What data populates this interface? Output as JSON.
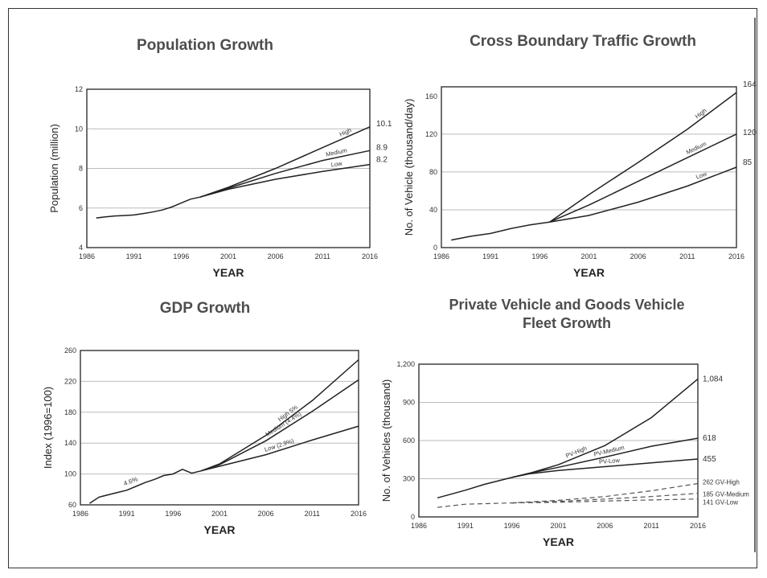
{
  "chart_data": [
    {
      "id": "population",
      "type": "line",
      "title": "Population Growth",
      "xlabel": "YEAR",
      "ylabel": "Population (million)",
      "xlim": [
        1986,
        2016
      ],
      "ylim": [
        4,
        12
      ],
      "xticks": [
        1986,
        1991,
        1996,
        2001,
        2006,
        2011,
        2016
      ],
      "yticks": [
        4,
        6,
        8,
        10,
        12
      ],
      "grid": true,
      "historical": [
        [
          1987,
          5.5
        ],
        [
          1988,
          5.55
        ],
        [
          1989,
          5.6
        ],
        [
          1990,
          5.62
        ],
        [
          1991,
          5.65
        ],
        [
          1992,
          5.72
        ],
        [
          1993,
          5.8
        ],
        [
          1994,
          5.9
        ],
        [
          1995,
          6.05
        ],
        [
          1996,
          6.25
        ],
        [
          1997,
          6.45
        ],
        [
          1998,
          6.55
        ]
      ],
      "series": [
        {
          "name": "High",
          "label": "High",
          "end_label": "10.1",
          "points": [
            [
              1998,
              6.55
            ],
            [
              2001,
              7.05
            ],
            [
              2006,
              8.0
            ],
            [
              2011,
              9.05
            ],
            [
              2016,
              10.1
            ]
          ]
        },
        {
          "name": "Medium",
          "label": "Medium",
          "end_label": "8.9",
          "points": [
            [
              1998,
              6.55
            ],
            [
              2001,
              7.0
            ],
            [
              2006,
              7.75
            ],
            [
              2011,
              8.4
            ],
            [
              2016,
              8.9
            ]
          ]
        },
        {
          "name": "Low",
          "label": "Low",
          "end_label": "8.2",
          "points": [
            [
              1998,
              6.55
            ],
            [
              2001,
              6.95
            ],
            [
              2006,
              7.45
            ],
            [
              2011,
              7.85
            ],
            [
              2016,
              8.2
            ]
          ]
        }
      ]
    },
    {
      "id": "traffic",
      "type": "line",
      "title": "Cross Boundary Traffic Growth",
      "xlabel": "YEAR",
      "ylabel": "No. of Vehicle (thousand/day)",
      "xlim": [
        1986,
        2016
      ],
      "ylim": [
        0,
        170
      ],
      "xticks": [
        1986,
        1991,
        1996,
        2001,
        2006,
        2011,
        2016
      ],
      "yticks": [
        0,
        40,
        80,
        120,
        160
      ],
      "grid": true,
      "historical": [
        [
          1987,
          8
        ],
        [
          1989,
          12
        ],
        [
          1991,
          15
        ],
        [
          1993,
          20
        ],
        [
          1995,
          24
        ],
        [
          1997,
          27
        ]
      ],
      "series": [
        {
          "name": "High",
          "label": "High",
          "end_label": "164",
          "points": [
            [
              1997,
              27
            ],
            [
              2001,
              56
            ],
            [
              2006,
              90
            ],
            [
              2011,
              125
            ],
            [
              2016,
              164
            ]
          ]
        },
        {
          "name": "Medium",
          "label": "Medium",
          "end_label": "120",
          "points": [
            [
              1997,
              27
            ],
            [
              2001,
              45
            ],
            [
              2006,
              70
            ],
            [
              2011,
              95
            ],
            [
              2016,
              120
            ]
          ]
        },
        {
          "name": "Low",
          "label": "Low",
          "end_label": "85",
          "points": [
            [
              1997,
              27
            ],
            [
              2001,
              34
            ],
            [
              2006,
              48
            ],
            [
              2011,
              65
            ],
            [
              2016,
              85
            ]
          ]
        }
      ]
    },
    {
      "id": "gdp",
      "type": "line",
      "title": "GDP Growth",
      "xlabel": "YEAR",
      "ylabel": "Index (1996=100)",
      "xlim": [
        1986,
        2016
      ],
      "ylim": [
        60,
        260
      ],
      "xticks": [
        1986,
        1991,
        1996,
        2001,
        2006,
        2011,
        2016
      ],
      "yticks": [
        60,
        100,
        140,
        180,
        220,
        260
      ],
      "grid": true,
      "historical": [
        [
          1987,
          62
        ],
        [
          1988,
          70
        ],
        [
          1989,
          73
        ],
        [
          1990,
          76
        ],
        [
          1991,
          79
        ],
        [
          1992,
          84
        ],
        [
          1993,
          89
        ],
        [
          1994,
          93
        ],
        [
          1995,
          98
        ],
        [
          1996,
          100
        ],
        [
          1997,
          106
        ],
        [
          1998,
          101
        ],
        [
          1999,
          104
        ]
      ],
      "historical_label": "4.6%",
      "series": [
        {
          "name": "High",
          "label": "High 5%",
          "points": [
            [
              1999,
              104
            ],
            [
              2001,
              113
            ],
            [
              2006,
              150
            ],
            [
              2011,
              195
            ],
            [
              2016,
              248
            ]
          ]
        },
        {
          "name": "Medium",
          "label": "Medium (4.4%)",
          "points": [
            [
              1999,
              104
            ],
            [
              2001,
              112
            ],
            [
              2006,
              143
            ],
            [
              2011,
              181
            ],
            [
              2016,
              222
            ]
          ]
        },
        {
          "name": "Low",
          "label": "Low (2.9%)",
          "points": [
            [
              1999,
              104
            ],
            [
              2001,
              110
            ],
            [
              2006,
              125
            ],
            [
              2011,
              144
            ],
            [
              2016,
              162
            ]
          ]
        }
      ]
    },
    {
      "id": "fleet",
      "type": "line",
      "title": "Private Vehicle and Goods Vehicle\nFleet Growth",
      "xlabel": "YEAR",
      "ylabel": "No. of Vehicles (thousand)",
      "xlim": [
        1986,
        2016
      ],
      "ylim": [
        0,
        1200
      ],
      "xticks": [
        1986,
        1991,
        1996,
        2001,
        2006,
        2011,
        2016
      ],
      "yticks": [
        0,
        300,
        600,
        900,
        1200
      ],
      "ytick_labels": [
        "0",
        "300",
        "600",
        "900",
        "1,200"
      ],
      "grid": true,
      "series": [
        {
          "name": "PV-High",
          "label": "PV-High",
          "end_label": "1,084",
          "dash": false,
          "points": [
            [
              1988,
              150
            ],
            [
              1991,
              210
            ],
            [
              1993,
              255
            ],
            [
              1996,
              310
            ],
            [
              1998,
              345
            ],
            [
              2001,
              410
            ],
            [
              2006,
              560
            ],
            [
              2011,
              780
            ],
            [
              2016,
              1084
            ]
          ]
        },
        {
          "name": "PV-Medium",
          "label": "PV-Medium",
          "end_label": "618",
          "dash": false,
          "points": [
            [
              1996,
              310
            ],
            [
              1998,
              345
            ],
            [
              2001,
              390
            ],
            [
              2006,
              470
            ],
            [
              2011,
              555
            ],
            [
              2016,
              618
            ]
          ]
        },
        {
          "name": "PV-Low",
          "label": "PV-Low",
          "end_label": "455",
          "dash": false,
          "points": [
            [
              1996,
              310
            ],
            [
              1998,
              340
            ],
            [
              2001,
              365
            ],
            [
              2006,
              395
            ],
            [
              2011,
              425
            ],
            [
              2016,
              455
            ]
          ]
        },
        {
          "name": "GV-High",
          "label": "",
          "end_label": "262 GV-High",
          "dash": true,
          "points": [
            [
              1988,
              75
            ],
            [
              1991,
              100
            ],
            [
              1996,
              110
            ],
            [
              2001,
              130
            ],
            [
              2006,
              160
            ],
            [
              2011,
              205
            ],
            [
              2016,
              262
            ]
          ]
        },
        {
          "name": "GV-Medium",
          "label": "",
          "end_label": "185 GV-Medium",
          "dash": true,
          "points": [
            [
              1996,
              110
            ],
            [
              2001,
              122
            ],
            [
              2006,
              140
            ],
            [
              2011,
              160
            ],
            [
              2016,
              185
            ]
          ]
        },
        {
          "name": "GV-Low",
          "label": "",
          "end_label": "141 GV-Low",
          "dash": true,
          "points": [
            [
              1996,
              110
            ],
            [
              2001,
              115
            ],
            [
              2006,
              125
            ],
            [
              2011,
              133
            ],
            [
              2016,
              141
            ]
          ]
        }
      ]
    }
  ]
}
